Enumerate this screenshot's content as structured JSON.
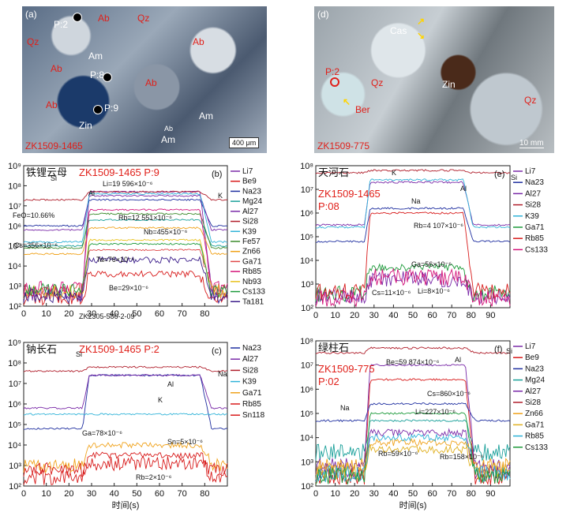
{
  "photos": [
    {
      "id": "a",
      "panel_label": "(a)",
      "sample": "ZK1509-1465",
      "scale_bar": "400 μm",
      "labels": {
        "ab1": "Ab",
        "qz1": "Qz",
        "qz2": "Qz",
        "ab2": "Ab",
        "ab3": "Ab",
        "am1": "Am",
        "ab4": "Ab",
        "ab5": "Ab",
        "am2": "Am",
        "am3": "Am",
        "zin": "Zin",
        "ab6": "Ab",
        "p2": "P:2",
        "p8": "P:8",
        "p9": "P:9"
      }
    },
    {
      "id": "d",
      "panel_label": "(d)",
      "sample": "ZK1509-775",
      "scale_bar": "10 mm",
      "labels": {
        "cas": "Cas",
        "p2": "P:2",
        "qz1": "Qz",
        "zin": "Zin",
        "ber": "Ber",
        "qz2": "Qz"
      }
    }
  ],
  "chart_data": [
    {
      "id": "b",
      "type": "line",
      "panel_label": "(b)",
      "mineral": "铁锂云母",
      "title": "ZK1509-1465 P:9",
      "xlabel": "",
      "ylabel": "",
      "footer": "ZK2305-586-2-09",
      "xlim": [
        0,
        90
      ],
      "ylim_log10": [
        2,
        9
      ],
      "xticks": [
        "0",
        "10",
        "20",
        "30",
        "40",
        "50",
        "60",
        "70",
        "80"
      ],
      "yticks": [
        "10²",
        "10³",
        "10⁴",
        "10⁵",
        "10⁶",
        "10⁷",
        "10⁸",
        "10⁹"
      ],
      "ablation_window": [
        27,
        80
      ],
      "series": [
        {
          "name": "Li7",
          "color": "#7a2aa8",
          "bg": 2.6,
          "sig": 7.7
        },
        {
          "name": "Be9",
          "color": "#d81b1b",
          "bg": 2.4,
          "sig": 3.6
        },
        {
          "name": "Na23",
          "color": "#1f2fa0",
          "bg": 6.0,
          "sig": 7.3
        },
        {
          "name": "Mg24",
          "color": "#1aa09a",
          "bg": 5.0,
          "sig": 6.3
        },
        {
          "name": "Al27",
          "color": "#7a2aa8",
          "bg": 5.8,
          "sig": 7.5
        },
        {
          "name": "Si28",
          "color": "#b01e2b",
          "bg": 7.3,
          "sig": 7.7
        },
        {
          "name": "K39",
          "color": "#30b3d8",
          "bg": 5.2,
          "sig": 7.6
        },
        {
          "name": "Fe57",
          "color": "#3a8a2a",
          "bg": 4.9,
          "sig": 6.6
        },
        {
          "name": "Zn66",
          "color": "#f0a21a",
          "bg": 4.6,
          "sig": 5.9
        },
        {
          "name": "Ga71",
          "color": "#e04848",
          "bg": 2.8,
          "sig": 4.8
        },
        {
          "name": "Rb85",
          "color": "#d4157a",
          "bg": 2.9,
          "sig": 6.8
        },
        {
          "name": "Nb93",
          "color": "#e8c21e",
          "bg": 2.7,
          "sig": 5.3
        },
        {
          "name": "Cs133",
          "color": "#1c9a3a",
          "bg": 2.8,
          "sig": 5.1
        },
        {
          "name": "Ta181",
          "color": "#3a1c8a",
          "bg": 2.5,
          "sig": 4.3
        }
      ],
      "annotations": [
        "Si",
        "Al",
        "Li=19 596×10⁻⁶",
        "K",
        "FeO=10.66%",
        "Rb=12 551×10⁻⁶",
        "Nb=455×10⁻⁶",
        "Cs=356×10⁻⁶",
        "Ta=76×10⁻⁶",
        "Be=29×10⁻⁶"
      ]
    },
    {
      "id": "e",
      "type": "line",
      "panel_label": "(e)",
      "mineral": "天河石",
      "title": "ZK1509-1465 P:08",
      "xlabel": "",
      "ylabel": "",
      "xlim": [
        0,
        100
      ],
      "ylim_log10": [
        2,
        8
      ],
      "xticks": [
        "0",
        "10",
        "20",
        "30",
        "40",
        "50",
        "60",
        "70",
        "80",
        "90"
      ],
      "yticks": [
        "10²",
        "10³",
        "10⁴",
        "10⁵",
        "10⁶",
        "10⁷",
        "10⁸"
      ],
      "ablation_window": [
        26,
        78
      ],
      "series": [
        {
          "name": "Li7",
          "color": "#7a2aa8",
          "bg": 2.5,
          "sig": 3.2
        },
        {
          "name": "Na23",
          "color": "#1f2fa0",
          "bg": 4.8,
          "sig": 6.2
        },
        {
          "name": "Al27",
          "color": "#7a2aa8",
          "bg": 5.5,
          "sig": 7.3
        },
        {
          "name": "Si28",
          "color": "#b01e2b",
          "bg": 7.7,
          "sig": 7.8
        },
        {
          "name": "K39",
          "color": "#30b3d8",
          "bg": 5.4,
          "sig": 7.4
        },
        {
          "name": "Ga71",
          "color": "#1c9a3a",
          "bg": 2.6,
          "sig": 3.7
        },
        {
          "name": "Rb85",
          "color": "#d81b1b",
          "bg": 2.7,
          "sig": 6.0
        },
        {
          "name": "Cs133",
          "color": "#d4157a",
          "bg": 2.4,
          "sig": 3.3
        }
      ],
      "annotations": [
        "K",
        "Si",
        "Al",
        "Na",
        "Rb=4 107×10⁻⁶",
        "Ga=56×10⁻⁶",
        "Cs=11×10⁻⁶",
        "Li=8×10⁻⁶"
      ]
    },
    {
      "id": "c",
      "type": "line",
      "panel_label": "(c)",
      "mineral": "钠长石",
      "title": "ZK1509-1465 P:2",
      "xlabel": "时间(s)",
      "ylabel": "",
      "xlim": [
        0,
        90
      ],
      "ylim_log10": [
        2,
        9
      ],
      "xticks": [
        "0",
        "10",
        "20",
        "30",
        "40",
        "50",
        "60",
        "70",
        "80"
      ],
      "yticks": [
        "10²",
        "10³",
        "10⁴",
        "10⁵",
        "10⁶",
        "10⁷",
        "10⁸",
        "10⁹"
      ],
      "ablation_window": [
        27,
        80
      ],
      "series": [
        {
          "name": "Na23",
          "color": "#1f2fa0",
          "bg": 4.8,
          "sig": 7.4
        },
        {
          "name": "Al27",
          "color": "#7a2aa8",
          "bg": 5.8,
          "sig": 7.4
        },
        {
          "name": "Si28",
          "color": "#b01e2b",
          "bg": 7.6,
          "sig": 7.8
        },
        {
          "name": "K39",
          "color": "#30b3d8",
          "bg": 5.5,
          "sig": 5.5
        },
        {
          "name": "Ga71",
          "color": "#f0a21a",
          "bg": 3.0,
          "sig": 4.0
        },
        {
          "name": "Rb85",
          "color": "#d81b1b",
          "bg": 2.8,
          "sig": 3.1
        },
        {
          "name": "Sn118",
          "color": "#d81b1b",
          "bg": 2.4,
          "sig": 3.5
        }
      ],
      "annotations": [
        "Si",
        "Al",
        "Na",
        "K",
        "Ga=78×10⁻⁶",
        "Sn=5×10⁻⁶",
        "Rb=2×10⁻⁶"
      ]
    },
    {
      "id": "f",
      "type": "line",
      "panel_label": "(f)",
      "mineral": "绿柱石",
      "title": "ZK1509-775 P:02",
      "xlabel": "时间(s)",
      "ylabel": "",
      "xlim": [
        0,
        100
      ],
      "ylim_log10": [
        2,
        8
      ],
      "xticks": [
        "0",
        "10",
        "20",
        "30",
        "40",
        "50",
        "60",
        "70",
        "80",
        "90"
      ],
      "yticks": [
        "10²",
        "10³",
        "10⁴",
        "10⁵",
        "10⁶",
        "10⁷",
        "10⁸"
      ],
      "ablation_window": [
        26,
        79
      ],
      "series": [
        {
          "name": "Li7",
          "color": "#7a2aa8",
          "bg": 2.6,
          "sig": 4.2
        },
        {
          "name": "Be9",
          "color": "#d81b1b",
          "bg": 2.4,
          "sig": 6.4
        },
        {
          "name": "Na23",
          "color": "#1f2fa0",
          "bg": 4.7,
          "sig": 5.4
        },
        {
          "name": "Mg24",
          "color": "#1aa09a",
          "bg": 3.4,
          "sig": 4.7
        },
        {
          "name": "Al27",
          "color": "#7a2aa8",
          "bg": 2.8,
          "sig": 7.0
        },
        {
          "name": "Si28",
          "color": "#b01e2b",
          "bg": 7.5,
          "sig": 7.7
        },
        {
          "name": "Zn66",
          "color": "#f0a21a",
          "bg": 2.8,
          "sig": 3.8
        },
        {
          "name": "Ga71",
          "color": "#e0b020",
          "bg": 2.6,
          "sig": 3.5
        },
        {
          "name": "Rb85",
          "color": "#30b3d8",
          "bg": 2.5,
          "sig": 4.0
        },
        {
          "name": "Cs133",
          "color": "#1c9a3a",
          "bg": 2.4,
          "sig": 5.0
        }
      ],
      "annotations": [
        "Be=59 874×10⁻⁶",
        "Al",
        "Si",
        "Cs=860×10⁻⁶",
        "Na",
        "Li=227×10⁻⁶",
        "Rb=59×10⁻⁶",
        "Rb=158×10⁻⁶"
      ]
    }
  ]
}
